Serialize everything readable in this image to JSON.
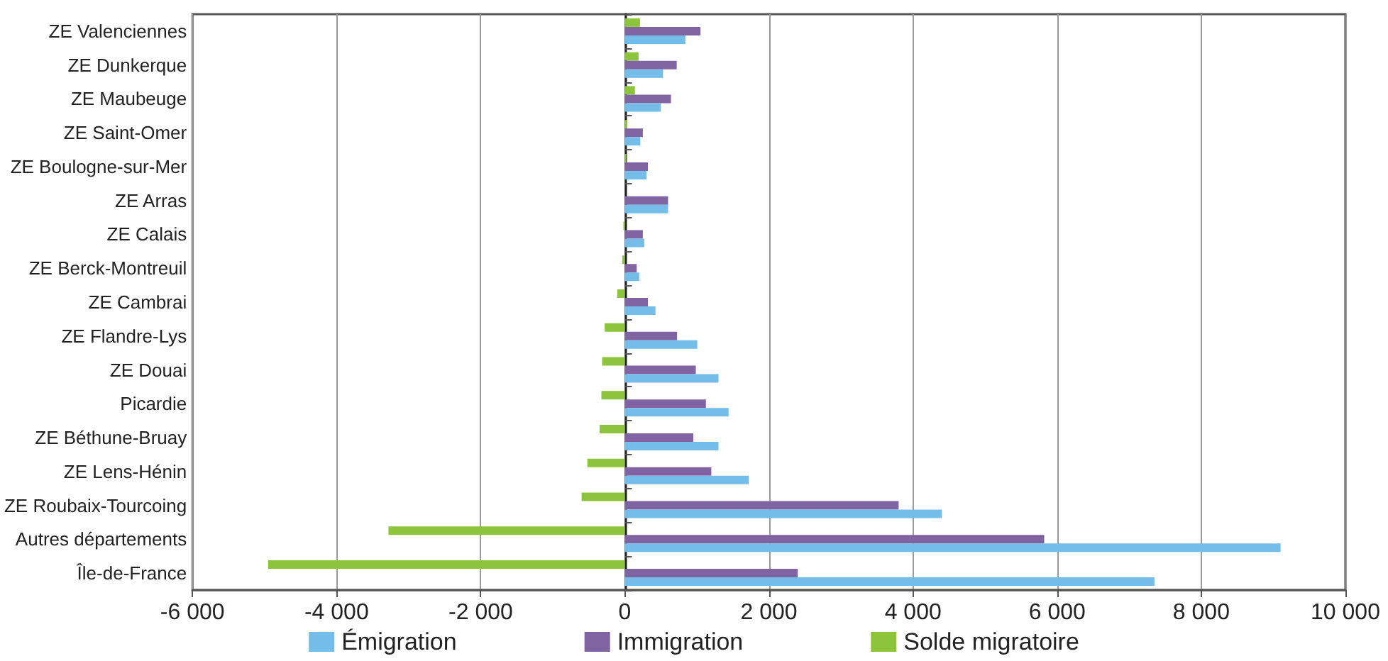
{
  "chart_data": {
    "type": "bar",
    "orientation": "horizontal",
    "categories": [
      "ZE Valenciennes",
      "ZE Dunkerque",
      "ZE Maubeuge",
      "ZE Saint-Omer",
      "ZE Boulogne-sur-Mer",
      "ZE Arras",
      "ZE Calais",
      "ZE Berck-Montreuil",
      "ZE Cambrai",
      "ZE Flandre-Lys",
      "ZE Douai",
      "Picardie",
      "ZE Béthune-Bruay",
      "ZE Lens-Hénin",
      "ZE Roubaix-Tourcoing",
      "Autres départements",
      "Île-de-France"
    ],
    "series": [
      {
        "name": "Émigration",
        "color": "#74bde8",
        "values": [
          840,
          530,
          500,
          215,
          300,
          600,
          270,
          200,
          425,
          1005,
          1300,
          1440,
          1300,
          1720,
          4400,
          9100,
          7350
        ]
      },
      {
        "name": "Immigration",
        "color": "#8064a2",
        "values": [
          1050,
          720,
          640,
          250,
          320,
          600,
          250,
          165,
          320,
          725,
          985,
          1125,
          950,
          1200,
          3800,
          5820,
          2400
        ]
      },
      {
        "name": "Solde migratoire",
        "color": "#8cc43c",
        "values": [
          210,
          190,
          140,
          35,
          20,
          0,
          -20,
          -35,
          -105,
          -280,
          -315,
          -325,
          -350,
          -520,
          -600,
          -3280,
          -4950
        ]
      }
    ],
    "xlim": [
      -6000,
      10000
    ],
    "xticks": [
      {
        "value": -6000,
        "label": "-6 000"
      },
      {
        "value": -4000,
        "label": "-4 000"
      },
      {
        "value": -2000,
        "label": "-2 000"
      },
      0,
      {
        "value": 2000,
        "label": "2 000"
      },
      {
        "value": 4000,
        "label": "4 000"
      },
      {
        "value": 6000,
        "label": "6 000"
      },
      {
        "value": 8000,
        "label": "8 000"
      },
      {
        "value": 10000,
        "label": "10 000"
      }
    ],
    "grid": "x",
    "legend": "bottom"
  }
}
